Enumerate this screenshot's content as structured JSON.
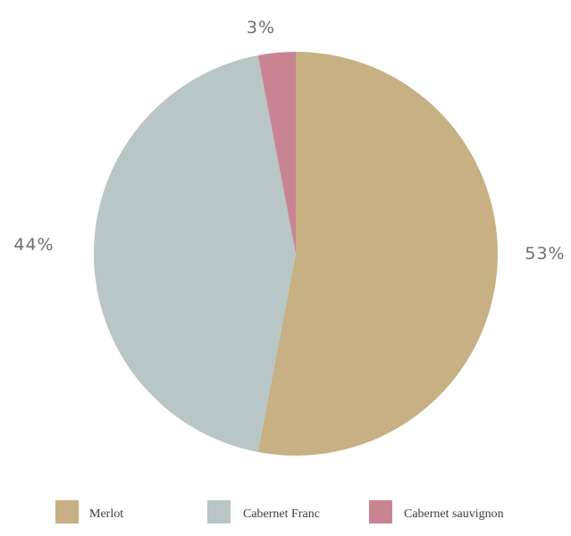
{
  "chart_data": {
    "type": "pie",
    "title": "",
    "slices": [
      {
        "label": "Merlot",
        "value": 53,
        "display": "53%",
        "color": "#c6b084"
      },
      {
        "label": "Cabernet Franc",
        "value": 44,
        "display": "44%",
        "color": "#b8c6c5"
      },
      {
        "label": "Cabernet sauvignon",
        "value": 3,
        "display": "3%",
        "color": "#c98494"
      }
    ],
    "start_angle_deg": 0,
    "direction": "clockwise",
    "legend": {
      "placement": "bottom"
    }
  }
}
